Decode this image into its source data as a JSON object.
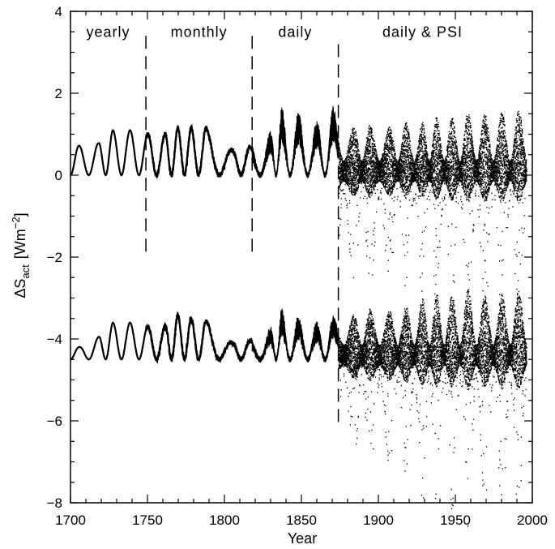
{
  "chart_data": {
    "type": "line",
    "title": "",
    "xlabel": "Year",
    "ylabel": {
      "main": "ΔS",
      "subscript": "act",
      "unit_open": "[Wm",
      "unit_sup": "−2",
      "unit_close": "]"
    },
    "xlim": [
      1700,
      2000
    ],
    "ylim": [
      -8,
      4
    ],
    "x_ticks": [
      1700,
      1750,
      1800,
      1850,
      1900,
      1950,
      2000
    ],
    "y_ticks": [
      -8,
      -6,
      -4,
      -2,
      0,
      2,
      4
    ],
    "x_tick_labels": [
      "1700",
      "1750",
      "1800",
      "1850",
      "1900",
      "1950",
      "2000"
    ],
    "y_tick_labels": [
      "−8",
      "−6",
      "−4",
      "−2",
      "0",
      "2",
      "4"
    ],
    "grid": false,
    "regions": [
      {
        "label": "yearly",
        "x_start": 1700,
        "x_end": 1749
      },
      {
        "label": "monthly",
        "x_start": 1749,
        "x_end": 1818
      },
      {
        "label": "daily",
        "x_start": 1818,
        "x_end": 1874
      },
      {
        "label": "daily & PSI",
        "x_start": 1874,
        "x_end": 1996
      }
    ],
    "boundaries": [
      {
        "x": 1749,
        "y_from": 3.4,
        "y_to": -2.0
      },
      {
        "x": 1818,
        "y_from": 3.4,
        "y_to": -2.0
      },
      {
        "x": 1874,
        "y_from": 3.2,
        "y_to": -6.2
      }
    ],
    "series": [
      {
        "baseline": 0.0,
        "x_end": 1996,
        "cycles": [
          {
            "max_year": 1705.5,
            "amp": 0.72
          },
          {
            "max_year": 1718.2,
            "amp": 0.78
          },
          {
            "max_year": 1727.5,
            "amp": 1.1
          },
          {
            "max_year": 1738.7,
            "amp": 1.1
          },
          {
            "max_year": 1750.3,
            "amp": 1.0
          },
          {
            "max_year": 1761.5,
            "amp": 1.0
          },
          {
            "max_year": 1769.7,
            "amp": 1.15
          },
          {
            "max_year": 1778.4,
            "amp": 1.15
          },
          {
            "max_year": 1788.1,
            "amp": 1.15
          },
          {
            "max_year": 1805.2,
            "amp": 0.6
          },
          {
            "max_year": 1816.4,
            "amp": 0.7
          },
          {
            "max_year": 1829.9,
            "amp": 0.95
          },
          {
            "max_year": 1837.2,
            "amp": 1.5
          },
          {
            "max_year": 1848.1,
            "amp": 1.4
          },
          {
            "max_year": 1860.1,
            "amp": 1.2
          },
          {
            "max_year": 1870.6,
            "amp": 1.5
          },
          {
            "max_year": 1883.9,
            "amp": 1.3
          },
          {
            "max_year": 1894.1,
            "amp": 1.4
          },
          {
            "max_year": 1907.0,
            "amp": 1.3
          },
          {
            "max_year": 1917.6,
            "amp": 1.5
          },
          {
            "max_year": 1928.4,
            "amp": 1.5
          },
          {
            "max_year": 1937.4,
            "amp": 1.7
          },
          {
            "max_year": 1947.5,
            "amp": 1.7
          },
          {
            "max_year": 1957.9,
            "amp": 1.9
          },
          {
            "max_year": 1968.9,
            "amp": 1.8
          },
          {
            "max_year": 1979.9,
            "amp": 1.9
          },
          {
            "max_year": 1990.8,
            "amp": 2.0
          }
        ]
      },
      {
        "baseline": -4.5,
        "x_end": 1996,
        "cycles": [
          {
            "max_year": 1705.5,
            "amp": 0.3
          },
          {
            "max_year": 1718.2,
            "amp": 0.55
          },
          {
            "max_year": 1727.5,
            "amp": 0.9
          },
          {
            "max_year": 1738.7,
            "amp": 0.9
          },
          {
            "max_year": 1750.3,
            "amp": 0.8
          },
          {
            "max_year": 1761.5,
            "amp": 0.8
          },
          {
            "max_year": 1769.7,
            "amp": 1.1
          },
          {
            "max_year": 1778.4,
            "amp": 1.0
          },
          {
            "max_year": 1788.1,
            "amp": 0.95
          },
          {
            "max_year": 1805.2,
            "amp": 0.4
          },
          {
            "max_year": 1816.4,
            "amp": 0.45
          },
          {
            "max_year": 1829.9,
            "amp": 0.7
          },
          {
            "max_year": 1837.2,
            "amp": 1.1
          },
          {
            "max_year": 1848.1,
            "amp": 0.95
          },
          {
            "max_year": 1860.1,
            "amp": 0.8
          },
          {
            "max_year": 1870.6,
            "amp": 0.95
          },
          {
            "max_year": 1883.9,
            "amp": 1.2
          },
          {
            "max_year": 1894.1,
            "amp": 1.4
          },
          {
            "max_year": 1907.0,
            "amp": 1.3
          },
          {
            "max_year": 1917.6,
            "amp": 1.5
          },
          {
            "max_year": 1928.4,
            "amp": 1.8
          },
          {
            "max_year": 1937.4,
            "amp": 2.0
          },
          {
            "max_year": 1947.5,
            "amp": 2.0
          },
          {
            "max_year": 1957.9,
            "amp": 2.2
          },
          {
            "max_year": 1968.9,
            "amp": 1.9
          },
          {
            "max_year": 1979.9,
            "amp": 2.0
          },
          {
            "max_year": 1990.8,
            "amp": 2.1
          }
        ]
      }
    ]
  }
}
